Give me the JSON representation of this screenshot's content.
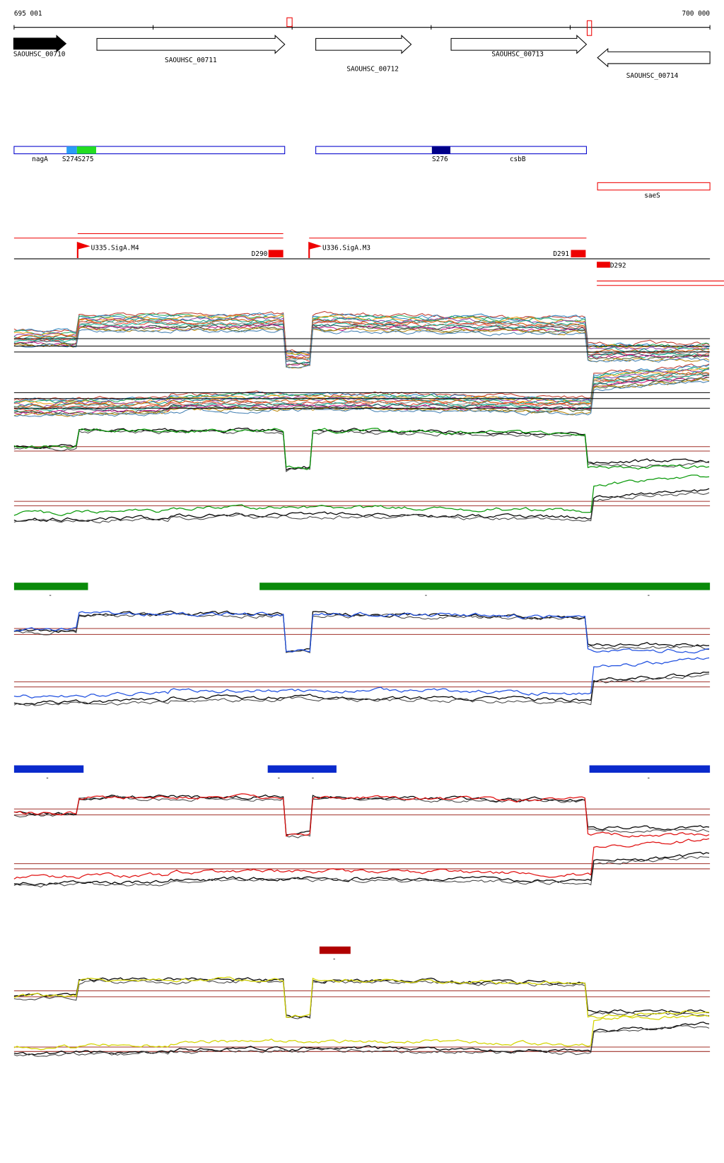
{
  "ruler": {
    "start": "695 001",
    "end": "700 000"
  },
  "genes": [
    "SAOUHSC_00710",
    "SAOUHSC_00711",
    "SAOUHSC_00712",
    "SAOUHSC_00713",
    "SAOUHSC_00714"
  ],
  "regions": [
    "nagA",
    "S274",
    "S275",
    "S276",
    "csbB",
    "saeS"
  ],
  "features": [
    "U335.SigA.M4",
    "U336.SigA.M3",
    "D290",
    "D291",
    "D292"
  ],
  "green_track": {
    "labels": [
      "-",
      "-",
      "-"
    ]
  },
  "blue_track": {
    "labels": [
      "-",
      "-",
      "-",
      "-"
    ]
  },
  "red_track": {
    "labels": [
      "-"
    ]
  }
}
